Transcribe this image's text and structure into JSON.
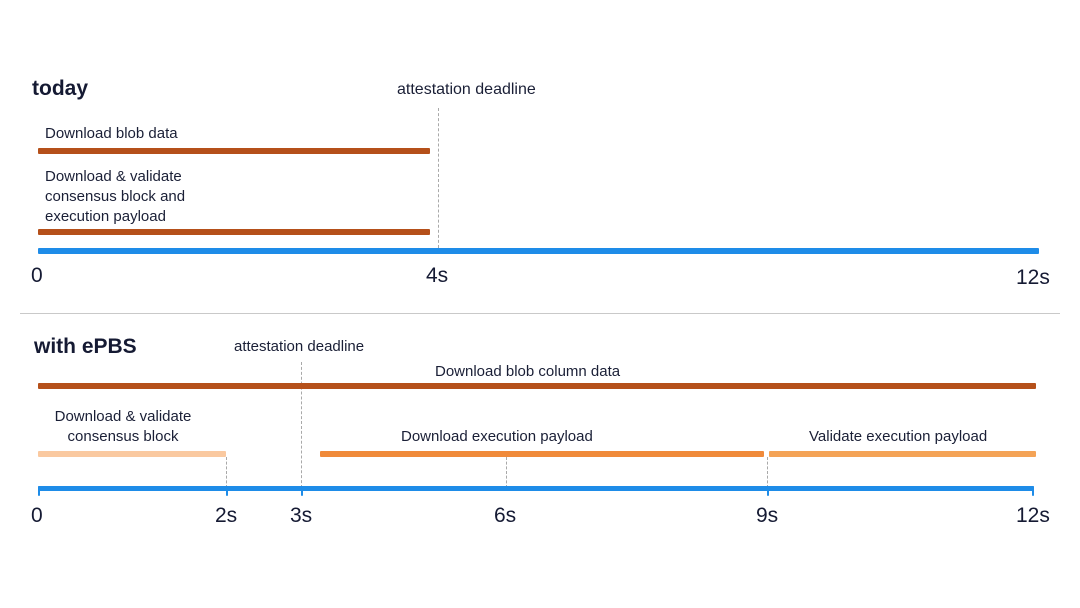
{
  "colors": {
    "timeline": "#1e8ce8",
    "download_dark": "#b5501a",
    "light_orange": "#fac9a0",
    "mid_orange": "#f08a3a",
    "validate_orange": "#f4a356",
    "divider": "#c9c9c9",
    "dashed_line": "#a9a9a9"
  },
  "today": {
    "title": "today",
    "deadline_label": "attestation deadline",
    "bars": {
      "blob": {
        "label": "Download blob data"
      },
      "validate": {
        "label": "Download & validate\nconsensus block and\nexecution payload"
      }
    },
    "ticks": [
      "0",
      "4s",
      "12s"
    ]
  },
  "epbs": {
    "title": "with ePBS",
    "deadline_label": "attestation deadline",
    "bars": {
      "blob_column": {
        "label": "Download blob column data"
      },
      "consensus": {
        "label": "Download & validate\nconsensus block"
      },
      "exec_download": {
        "label": "Download execution payload"
      },
      "exec_validate": {
        "label": "Validate execution payload"
      }
    },
    "ticks": [
      "0",
      "2s",
      "3s",
      "6s",
      "9s",
      "12s"
    ]
  }
}
